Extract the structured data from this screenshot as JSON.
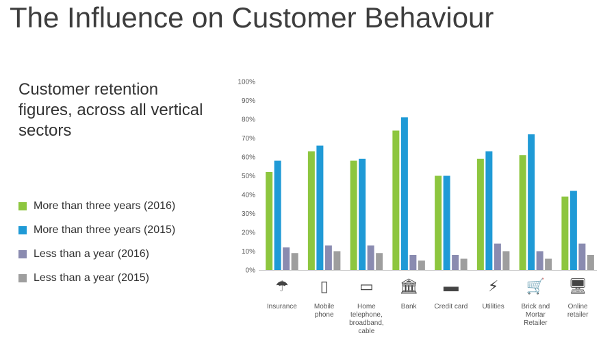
{
  "slide": {
    "title": "The Influence on Customer Behaviour",
    "subtitle": "Customer retention figures, across all vertical sectors"
  },
  "chart_data": {
    "type": "bar",
    "categories": [
      "Insurance",
      "Mobile phone",
      "Home telephone, broadband, cable",
      "Bank",
      "Credit card",
      "Utilities",
      "Brick and Mortar Retailer",
      "Online retailer"
    ],
    "category_labels": [
      [
        "Insurance"
      ],
      [
        "Mobile",
        "phone"
      ],
      [
        "Home",
        "telephone,",
        "broadband,",
        "cable"
      ],
      [
        "Bank"
      ],
      [
        "Credit card"
      ],
      [
        "Utilities"
      ],
      [
        "Brick and",
        "Mortar",
        "Retailer"
      ],
      [
        "Online",
        "retailer"
      ]
    ],
    "category_icons": [
      {
        "name": "insurance-icon",
        "glyph": "☂"
      },
      {
        "name": "mobile-phone-icon",
        "glyph": "▯"
      },
      {
        "name": "laptop-icon",
        "glyph": "▭"
      },
      {
        "name": "bank-icon",
        "glyph": "🏛"
      },
      {
        "name": "credit-card-icon",
        "glyph": "▬"
      },
      {
        "name": "utilities-icon",
        "glyph": "⚡"
      },
      {
        "name": "shopping-cart-icon",
        "glyph": "🛒"
      },
      {
        "name": "monitor-icon",
        "glyph": "🖥"
      }
    ],
    "series": [
      {
        "name": "More than three years (2016)",
        "color": "#8dc63f",
        "values": [
          52,
          63,
          58,
          74,
          50,
          59,
          61,
          39
        ]
      },
      {
        "name": "More than three years (2015)",
        "color": "#1f9ad6",
        "values": [
          58,
          66,
          59,
          81,
          50,
          63,
          72,
          42
        ]
      },
      {
        "name": "Less than a year (2016)",
        "color": "#8a8bb0",
        "values": [
          12,
          13,
          13,
          8,
          8,
          14,
          10,
          14
        ]
      },
      {
        "name": "Less than a year (2015)",
        "color": "#9e9e9e",
        "values": [
          9,
          10,
          9,
          5,
          6,
          10,
          6,
          8
        ]
      }
    ],
    "yticks": [
      "0%",
      "10%",
      "20%",
      "30%",
      "40%",
      "50%",
      "60%",
      "70%",
      "80%",
      "90%",
      "100%"
    ],
    "ylim": [
      0,
      100
    ],
    "grid": false,
    "legend_placement": "left"
  }
}
